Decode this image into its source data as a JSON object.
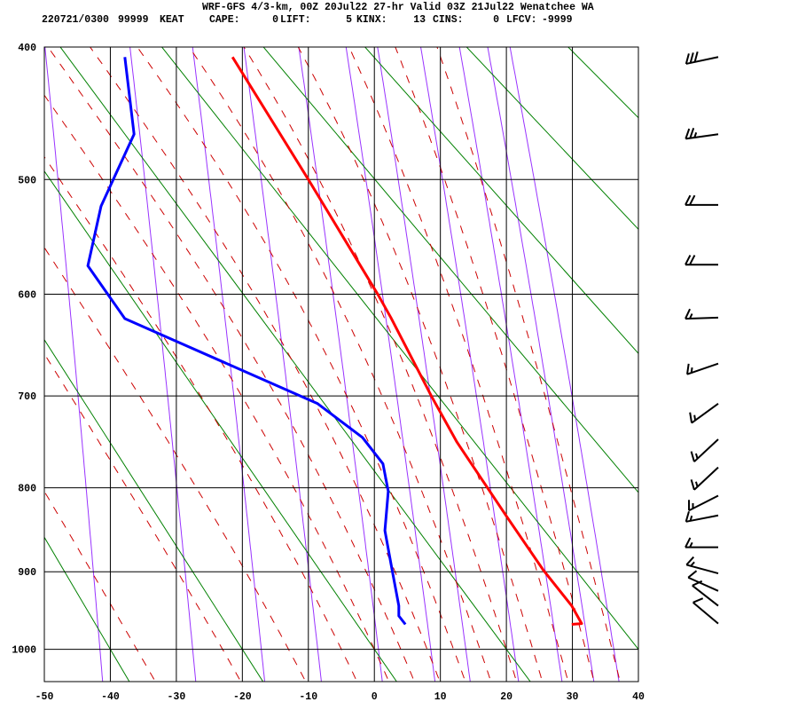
{
  "header": {
    "title": "WRF-GFS 4/3-km, 00Z 20Jul22 27-hr Valid 03Z 21Jul22 Wenatchee WA",
    "date_time": "220721/0300",
    "station_number": "99999",
    "station_id": "KEAT",
    "indices": [
      {
        "label": "CAPE:",
        "value": "0"
      },
      {
        "label": "LIFT:",
        "value": "5"
      },
      {
        "label": "KINX:",
        "value": "13"
      },
      {
        "label": "CINS:",
        "value": "0"
      },
      {
        "label": "LFCV:",
        "value": "-9999"
      }
    ]
  },
  "chart_data": {
    "type": "line",
    "diagram": "Stuve thermodynamic diagram",
    "title": "",
    "xlabel": "",
    "ylabel": "",
    "xlim": [
      -50,
      40
    ],
    "ylim": [
      1050,
      400
    ],
    "x_ticks": [
      "-50",
      "-40",
      "-30",
      "-20",
      "-10",
      "0",
      "10",
      "20",
      "30",
      "40"
    ],
    "y_ticks": [
      "400",
      "500",
      "600",
      "700",
      "800",
      "900",
      "1000"
    ],
    "grid": true,
    "colors": {
      "temperature": "#ff0000",
      "dewpoint": "#0000ff",
      "dry_adiabat": "#008000",
      "moist_adiabat": "#cc0000",
      "mixing_ratio": "#9933ff",
      "grid": "#000000"
    },
    "series": [
      {
        "key": "temperature",
        "points": [
          [
            407,
            -21.5
          ],
          [
            500,
            -10.0
          ],
          [
            601,
            0.6
          ],
          [
            622,
            2.5
          ],
          [
            701,
            8.7
          ],
          [
            749,
            12.5
          ],
          [
            834,
            20.1
          ],
          [
            898,
            25.6
          ],
          [
            943,
            29.9
          ],
          [
            966,
            31.4
          ],
          [
            967,
            29.9
          ]
        ]
      },
      {
        "key": "dewpoint",
        "points": [
          [
            407,
            -37.8
          ],
          [
            464,
            -36.4
          ],
          [
            522,
            -41.4
          ],
          [
            574,
            -43.4
          ],
          [
            623,
            -37.8
          ],
          [
            708,
            -8.6
          ],
          [
            744,
            -1.8
          ],
          [
            773,
            1.3
          ],
          [
            804,
            2.1
          ],
          [
            850,
            1.6
          ],
          [
            903,
            2.8
          ],
          [
            943,
            3.7
          ],
          [
            956,
            3.7
          ],
          [
            967,
            4.7
          ]
        ]
      }
    ],
    "dry_adiabats_theta_c": [
      -60,
      -40,
      -20,
      0,
      20,
      40,
      60,
      80,
      100,
      120,
      140
    ],
    "moist_adiabats_t1000_c": [
      -36,
      -23,
      -13,
      -5,
      0,
      4,
      8,
      12,
      16,
      20,
      24,
      28,
      32,
      36
    ],
    "mixing_ratio_lines_gkg": [
      0.1,
      0.4,
      1,
      2,
      4,
      7,
      10,
      16,
      24,
      32,
      40
    ],
    "wind_barbs": [
      {
        "p": 407,
        "dir": 258,
        "spd": 30
      },
      {
        "p": 464,
        "dir": 262,
        "spd": 25
      },
      {
        "p": 521,
        "dir": 270,
        "spd": 20
      },
      {
        "p": 573,
        "dir": 270,
        "spd": 20
      },
      {
        "p": 622,
        "dir": 268,
        "spd": 15
      },
      {
        "p": 667,
        "dir": 251,
        "spd": 15
      },
      {
        "p": 708,
        "dir": 234,
        "spd": 15
      },
      {
        "p": 746,
        "dir": 227,
        "spd": 15
      },
      {
        "p": 777,
        "dir": 227,
        "spd": 15
      },
      {
        "p": 809,
        "dir": 243,
        "spd": 15
      },
      {
        "p": 832,
        "dir": 259,
        "spd": 15
      },
      {
        "p": 870,
        "dir": 270,
        "spd": 15
      },
      {
        "p": 902,
        "dir": 285,
        "spd": 15
      },
      {
        "p": 924,
        "dir": 294,
        "spd": 10
      },
      {
        "p": 943,
        "dir": 308,
        "spd": 10
      },
      {
        "p": 966,
        "dir": 310,
        "spd": 10
      }
    ]
  }
}
